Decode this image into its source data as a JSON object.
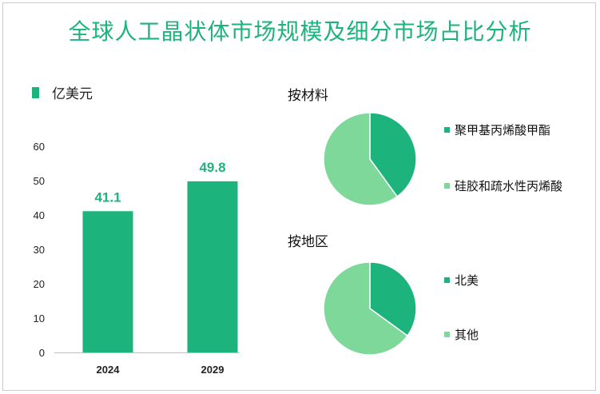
{
  "title": "全球人工晶状体市场规模及细分市场占比分析",
  "colors": {
    "primary": "#1db37c",
    "secondary": "#7dd89a"
  },
  "chart_data": [
    {
      "type": "bar",
      "legend": "亿美元",
      "categories": [
        "2024",
        "2029"
      ],
      "values": [
        41.1,
        49.8
      ],
      "value_labels": [
        "41.1",
        "49.8"
      ],
      "y_ticks": [
        "0",
        "10",
        "20",
        "30",
        "40",
        "50",
        "60"
      ],
      "ylim": [
        0,
        60
      ],
      "grid": false
    },
    {
      "type": "pie",
      "title": "按材料",
      "labels": [
        "聚甲基丙烯酸甲酯",
        "硅胶和疏水性丙烯酸"
      ],
      "values": [
        0.4,
        0.6
      ],
      "colors": [
        "#1db37c",
        "#7dd89a"
      ]
    },
    {
      "type": "pie",
      "title": "按地区",
      "labels": [
        "北美",
        "其他"
      ],
      "values": [
        0.35,
        0.65
      ],
      "colors": [
        "#1db37c",
        "#7dd89a"
      ]
    }
  ]
}
